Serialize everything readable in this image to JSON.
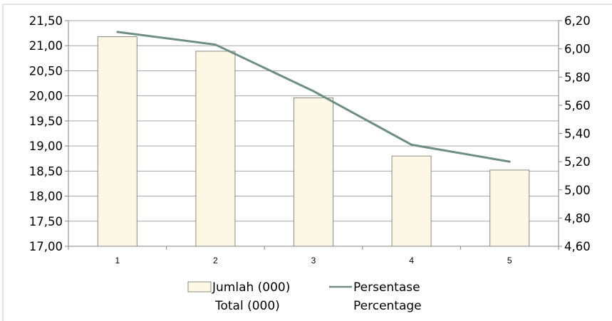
{
  "chart_data": {
    "type": "bar",
    "categories": [
      "1",
      "2",
      "3",
      "4",
      "5"
    ],
    "series": [
      {
        "name": "Jumlah (000)",
        "name_line2": "Total (000)",
        "type": "bar",
        "axis": "left",
        "values": [
          21.18,
          20.89,
          19.96,
          18.8,
          18.52
        ]
      },
      {
        "name": "Persentase",
        "name_line2": "Percentage",
        "type": "line",
        "axis": "right",
        "values": [
          6.12,
          6.03,
          5.7,
          5.32,
          5.2
        ]
      }
    ],
    "y_left": {
      "ylim": [
        17.0,
        21.5
      ],
      "ticks": [
        "17,00",
        "17,50",
        "18,00",
        "18,50",
        "19,00",
        "19,50",
        "20,00",
        "20,50",
        "21,00",
        "21,50"
      ]
    },
    "y_right": {
      "ylim": [
        4.6,
        6.2
      ],
      "ticks": [
        "4,60",
        "4,80",
        "5,00",
        "5,20",
        "5,40",
        "5,60",
        "5,80",
        "6,00",
        "6,20"
      ]
    },
    "grid": true,
    "legend_position": "bottom",
    "colors": {
      "bar_fill": "#fdf8e6",
      "bar_stroke": "#8c8c7e",
      "line": "#6e8d85",
      "grid": "#a6a6a6"
    }
  }
}
